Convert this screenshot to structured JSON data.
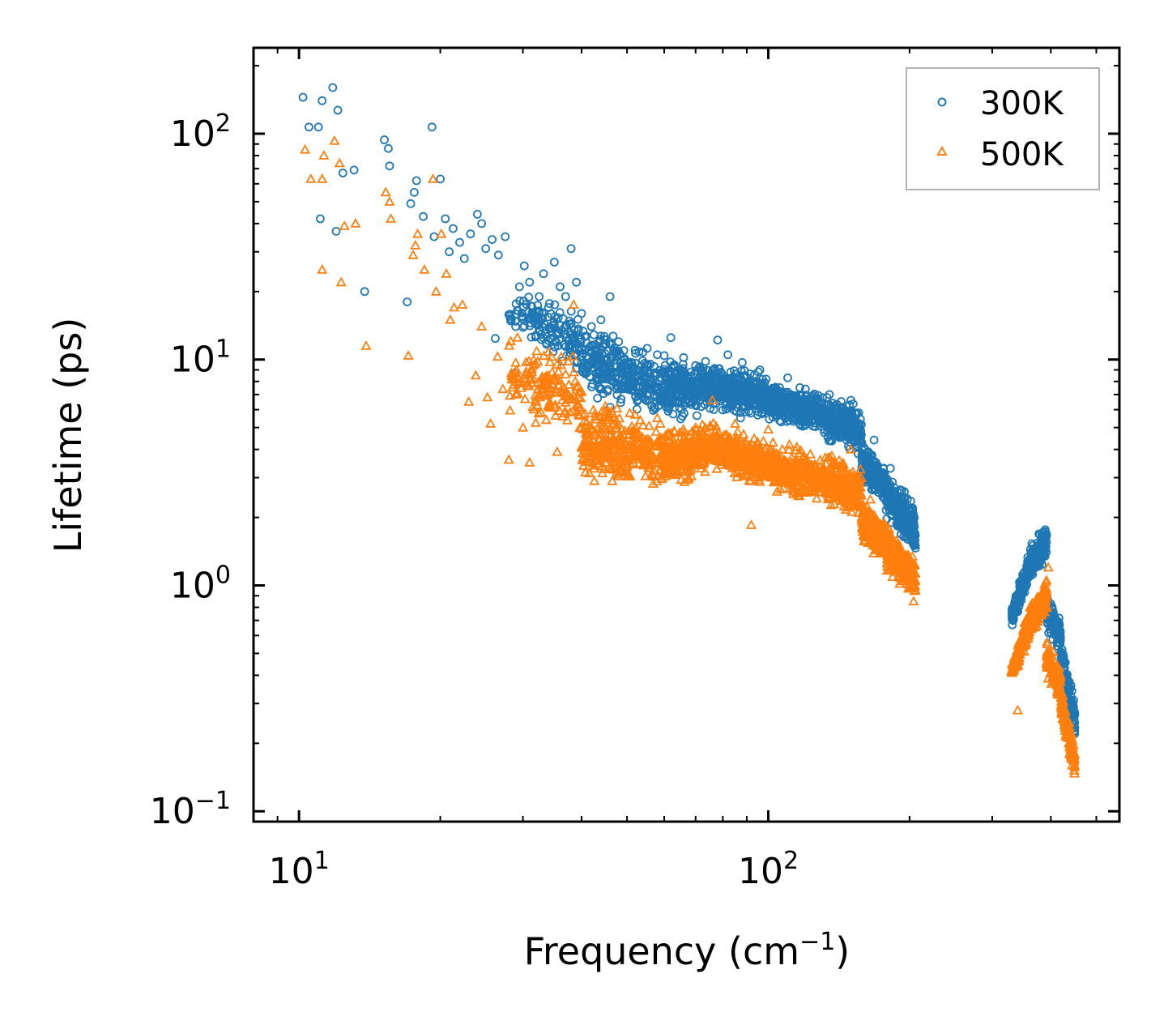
{
  "chart_data": {
    "type": "scatter",
    "title": "",
    "xlabel": "Frequency (cm",
    "xlabel_sup": "−1",
    "xlabel_end": ")",
    "ylabel": "Lifetime (ps)",
    "xscale": "log",
    "yscale": "log",
    "xlim": [
      8.0,
      560
    ],
    "ylim": [
      0.09,
      240
    ],
    "x_ticks": [
      {
        "value": 10,
        "base": "10",
        "exp": "1"
      },
      {
        "value": 100,
        "base": "10",
        "exp": "2"
      }
    ],
    "y_ticks": [
      {
        "value": 0.1,
        "base": "10",
        "exp": "−1"
      },
      {
        "value": 1,
        "base": "10",
        "exp": "0"
      },
      {
        "value": 10,
        "base": "10",
        "exp": "1"
      },
      {
        "value": 100,
        "base": "10",
        "exp": "2"
      }
    ],
    "legend": {
      "position": "top-right",
      "entries": [
        "300K",
        "500K"
      ]
    },
    "colors": {
      "300K": "#1f77b4",
      "500K": "#ff7f0e",
      "axes": "#000000",
      "legend_border": "#999999"
    },
    "series": [
      {
        "name": "300K",
        "marker": "circle",
        "color": "#1f77b4",
        "points": [
          [
            10.2,
            145
          ],
          [
            10.5,
            107
          ],
          [
            11.0,
            107
          ],
          [
            11.2,
            140
          ],
          [
            11.8,
            160
          ],
          [
            12.1,
            127
          ],
          [
            12.4,
            67
          ],
          [
            13.1,
            69
          ],
          [
            11.1,
            42
          ],
          [
            12.0,
            37
          ],
          [
            13.8,
            20
          ],
          [
            15.2,
            94
          ],
          [
            15.5,
            86
          ],
          [
            15.6,
            72
          ],
          [
            17.0,
            18
          ],
          [
            17.3,
            49
          ],
          [
            17.6,
            55
          ],
          [
            17.8,
            62
          ],
          [
            18.4,
            43
          ],
          [
            19.2,
            107
          ],
          [
            19.4,
            35
          ],
          [
            20.0,
            63
          ],
          [
            20.5,
            42
          ],
          [
            20.9,
            30
          ],
          [
            21.3,
            38
          ],
          [
            22.0,
            33
          ],
          [
            22.5,
            28
          ],
          [
            23.2,
            36
          ],
          [
            24.0,
            44
          ],
          [
            24.5,
            40
          ],
          [
            25.0,
            31
          ],
          [
            25.8,
            34
          ],
          [
            26.2,
            12.4
          ],
          [
            26.6,
            29
          ],
          [
            27.5,
            35
          ],
          [
            28.8,
            8.7
          ],
          [
            29.5,
            21
          ],
          [
            30.2,
            26
          ],
          [
            31.0,
            22
          ],
          [
            32.5,
            19
          ],
          [
            33.2,
            24
          ],
          [
            34.0,
            17
          ],
          [
            35.0,
            27
          ],
          [
            36.0,
            21
          ],
          [
            37.0,
            19
          ],
          [
            38.0,
            31
          ],
          [
            39.0,
            22
          ],
          [
            40.0,
            16
          ],
          [
            42.0,
            14
          ],
          [
            44.0,
            15
          ],
          [
            46.0,
            19
          ],
          [
            48.0,
            12
          ],
          [
            52.0,
            11
          ],
          [
            55.0,
            9.5
          ],
          [
            58.0,
            10.5
          ],
          [
            62.0,
            12.5
          ],
          [
            66.0,
            10.2
          ],
          [
            70.0,
            9.4
          ],
          [
            78.0,
            12.2
          ],
          [
            82.0,
            10.5
          ],
          [
            88.0,
            9.7
          ],
          [
            96.0,
            9.0
          ],
          [
            110.0,
            8.3
          ],
          [
            120.0,
            7.4
          ],
          [
            135.0,
            7.0
          ],
          [
            150.0,
            6.6
          ],
          [
            168.0,
            4.4
          ],
          [
            182.0,
            3.3
          ],
          [
            195.0,
            2.6
          ],
          [
            203.0,
            2.2
          ],
          [
            204.5,
            1.5
          ]
        ],
        "bands": [
          {
            "x0": 28,
            "x1": 40,
            "ylo0": 12,
            "yhi0": 22,
            "ylo1": 8,
            "yhi1": 18,
            "n": 140
          },
          {
            "x0": 40,
            "x1": 60,
            "ylo0": 6.5,
            "yhi0": 16,
            "ylo1": 5.0,
            "yhi1": 11,
            "n": 320
          },
          {
            "x0": 60,
            "x1": 75,
            "ylo0": 5.0,
            "yhi0": 11,
            "ylo1": 5.5,
            "yhi1": 10.5,
            "n": 240
          },
          {
            "x0": 75,
            "x1": 100,
            "ylo0": 5.5,
            "yhi0": 10.5,
            "ylo1": 5.2,
            "yhi1": 9.0,
            "n": 320
          },
          {
            "x0": 100,
            "x1": 130,
            "ylo0": 5.0,
            "yhi0": 8.5,
            "ylo1": 4.6,
            "yhi1": 7.4,
            "n": 300
          },
          {
            "x0": 130,
            "x1": 158,
            "ylo0": 4.4,
            "yhi0": 7.2,
            "ylo1": 3.6,
            "yhi1": 6.4,
            "n": 300
          },
          {
            "x0": 158,
            "x1": 178,
            "ylo0": 2.8,
            "yhi0": 4.6,
            "ylo1": 2.2,
            "yhi1": 3.4,
            "n": 220
          },
          {
            "x0": 178,
            "x1": 206,
            "ylo0": 1.9,
            "yhi0": 3.3,
            "ylo1": 1.3,
            "yhi1": 2.3,
            "n": 260
          },
          {
            "x0": 330,
            "x1": 360,
            "ylo0": 0.62,
            "yhi0": 0.85,
            "ylo1": 1.0,
            "yhi1": 1.45,
            "n": 160
          },
          {
            "x0": 360,
            "x1": 392,
            "ylo0": 1.0,
            "yhi0": 1.55,
            "ylo1": 1.25,
            "yhi1": 1.95,
            "n": 180
          },
          {
            "x0": 392,
            "x1": 420,
            "ylo0": 0.62,
            "yhi0": 0.95,
            "ylo1": 0.48,
            "yhi1": 0.72,
            "n": 120
          },
          {
            "x0": 420,
            "x1": 450,
            "ylo0": 0.42,
            "yhi0": 0.6,
            "ylo1": 0.2,
            "yhi1": 0.32,
            "n": 130
          }
        ]
      },
      {
        "name": "500K",
        "marker": "triangle",
        "color": "#ff7f0e",
        "points": [
          [
            10.3,
            85
          ],
          [
            10.6,
            63
          ],
          [
            11.2,
            63
          ],
          [
            11.3,
            80
          ],
          [
            11.9,
            93
          ],
          [
            12.2,
            74
          ],
          [
            12.5,
            39
          ],
          [
            13.2,
            40
          ],
          [
            11.2,
            25
          ],
          [
            12.3,
            22
          ],
          [
            13.9,
            11.5
          ],
          [
            15.3,
            55
          ],
          [
            15.6,
            50
          ],
          [
            15.7,
            42
          ],
          [
            17.1,
            10.4
          ],
          [
            17.5,
            29
          ],
          [
            17.7,
            32
          ],
          [
            17.9,
            36
          ],
          [
            18.5,
            25
          ],
          [
            19.3,
            63
          ],
          [
            19.6,
            20
          ],
          [
            20.1,
            36
          ],
          [
            20.6,
            24
          ],
          [
            21.0,
            15
          ],
          [
            21.4,
            17
          ],
          [
            22.3,
            17.5
          ],
          [
            23.0,
            6.5
          ],
          [
            23.8,
            8.5
          ],
          [
            24.5,
            14
          ],
          [
            25.2,
            6.8
          ],
          [
            25.6,
            5.2
          ],
          [
            26.5,
            10.3
          ],
          [
            27.2,
            7.4
          ],
          [
            28.0,
            3.6
          ],
          [
            29.2,
            12.5
          ],
          [
            30.0,
            5.0
          ],
          [
            31.0,
            3.5
          ],
          [
            32.0,
            6.5
          ],
          [
            34.0,
            10.8
          ],
          [
            35.5,
            3.9
          ],
          [
            37.0,
            8.6
          ],
          [
            38.5,
            17.5
          ],
          [
            40.0,
            4.1
          ],
          [
            43.0,
            3.8
          ],
          [
            47.0,
            4.3
          ],
          [
            52.0,
            5.7
          ],
          [
            58.0,
            5.5
          ],
          [
            62.0,
            3.9
          ],
          [
            70.0,
            5.0
          ],
          [
            76.0,
            6.6
          ],
          [
            85.0,
            5.2
          ],
          [
            92.0,
            1.85
          ],
          [
            100.0,
            4.9
          ],
          [
            115.0,
            4.1
          ],
          [
            125.0,
            2.9
          ],
          [
            140.0,
            3.4
          ],
          [
            150.0,
            4.0
          ],
          [
            165.0,
            2.4
          ],
          [
            180.0,
            1.8
          ],
          [
            195.0,
            1.3
          ],
          [
            204.0,
            0.85
          ],
          [
            340.0,
            0.28
          ],
          [
            395.0,
            1.2
          ]
        ],
        "bands": [
          {
            "x0": 28,
            "x1": 40,
            "ylo0": 5.5,
            "yhi0": 13,
            "ylo1": 4.0,
            "yhi1": 11,
            "n": 150
          },
          {
            "x0": 40,
            "x1": 60,
            "ylo0": 2.8,
            "yhi0": 7.5,
            "ylo1": 2.5,
            "yhi1": 5.5,
            "n": 340
          },
          {
            "x0": 60,
            "x1": 75,
            "ylo0": 2.5,
            "yhi0": 5.5,
            "ylo1": 3.0,
            "yhi1": 5.5,
            "n": 250
          },
          {
            "x0": 75,
            "x1": 100,
            "ylo0": 3.0,
            "yhi0": 5.5,
            "ylo1": 2.6,
            "yhi1": 4.6,
            "n": 320
          },
          {
            "x0": 100,
            "x1": 130,
            "ylo0": 2.5,
            "yhi0": 4.6,
            "ylo1": 2.2,
            "yhi1": 4.0,
            "n": 300
          },
          {
            "x0": 130,
            "x1": 158,
            "ylo0": 2.2,
            "yhi0": 4.0,
            "ylo1": 1.9,
            "yhi1": 3.5,
            "n": 300
          },
          {
            "x0": 158,
            "x1": 178,
            "ylo0": 1.5,
            "yhi0": 2.6,
            "ylo1": 1.2,
            "yhi1": 2.0,
            "n": 220
          },
          {
            "x0": 178,
            "x1": 206,
            "ylo0": 1.1,
            "yhi0": 2.0,
            "ylo1": 0.85,
            "yhi1": 1.35,
            "n": 260
          },
          {
            "x0": 330,
            "x1": 360,
            "ylo0": 0.36,
            "yhi0": 0.48,
            "ylo1": 0.55,
            "yhi1": 0.8,
            "n": 160
          },
          {
            "x0": 360,
            "x1": 392,
            "ylo0": 0.55,
            "yhi0": 0.85,
            "ylo1": 0.75,
            "yhi1": 1.1,
            "n": 180
          },
          {
            "x0": 392,
            "x1": 420,
            "ylo0": 0.38,
            "yhi0": 0.6,
            "ylo1": 0.3,
            "yhi1": 0.45,
            "n": 120
          },
          {
            "x0": 420,
            "x1": 450,
            "ylo0": 0.26,
            "yhi0": 0.38,
            "ylo1": 0.13,
            "yhi1": 0.2,
            "n": 130
          }
        ]
      }
    ]
  }
}
